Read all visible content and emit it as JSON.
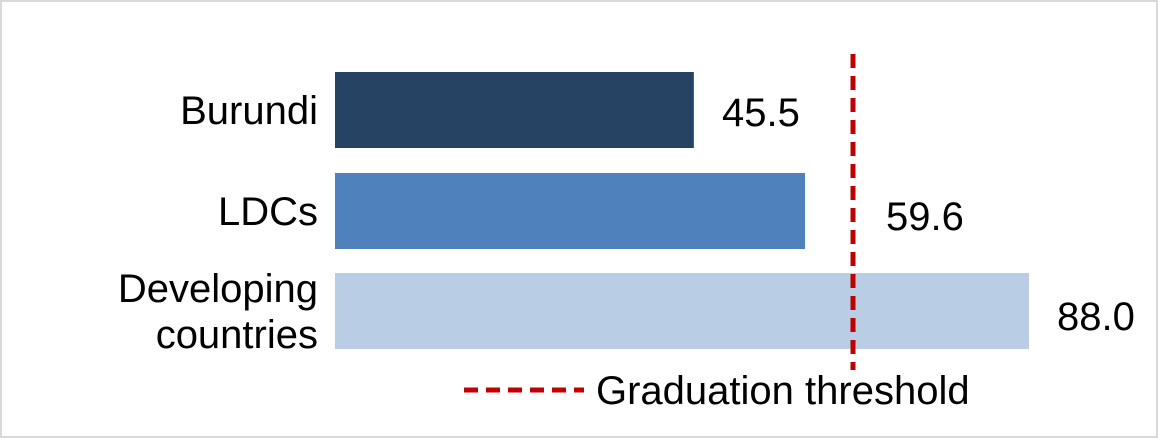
{
  "chart_data": {
    "type": "bar",
    "orientation": "horizontal",
    "categories": [
      "Burundi",
      "LDCs",
      "Developing countries"
    ],
    "values": [
      45.5,
      59.6,
      88.0
    ],
    "value_labels": [
      "45.5",
      "59.6",
      "88.0"
    ],
    "bar_colors": [
      "#264364",
      "#4F81BD",
      "#B9CDE5"
    ],
    "threshold": {
      "value": 66,
      "label": "Graduation threshold",
      "color": "#C00000",
      "style": "dashed"
    },
    "title": "",
    "xlabel": "",
    "ylabel": "",
    "xlim": [
      0,
      88.0
    ],
    "grid": false,
    "legend_position": "bottom"
  }
}
